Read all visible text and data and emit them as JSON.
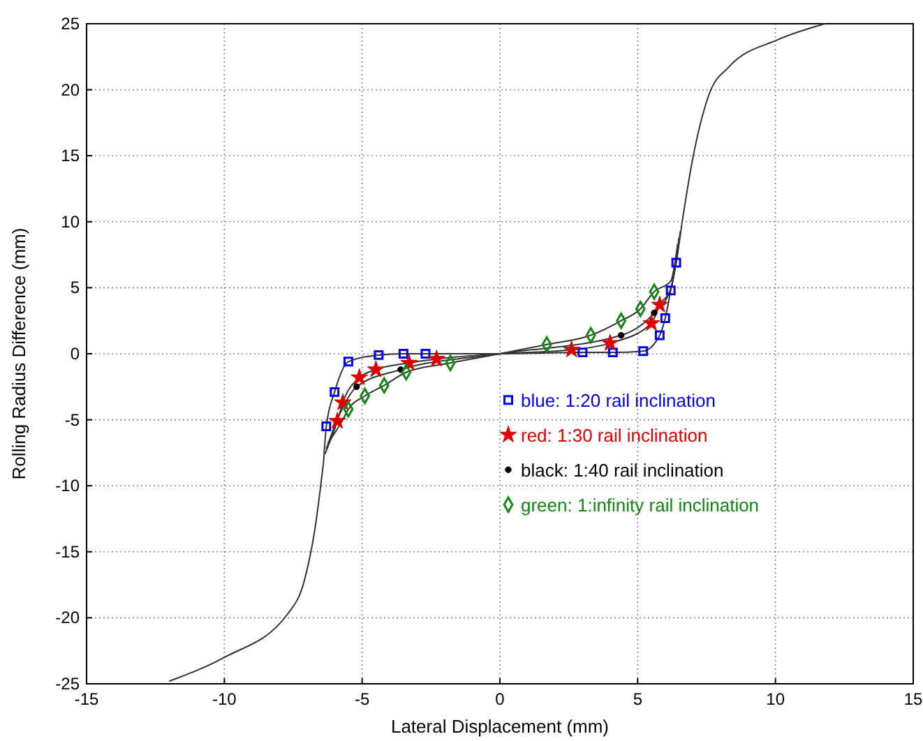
{
  "chart_data": {
    "type": "line",
    "xlabel": "Lateral Displacement (mm)",
    "ylabel": "Rolling Radius Difference (mm)",
    "xlim": [
      -15,
      15
    ],
    "ylim": [
      -25,
      25
    ],
    "xticks": [
      -15,
      -10,
      -5,
      0,
      5,
      10,
      15
    ],
    "yticks": [
      -25,
      -20,
      -15,
      -10,
      -5,
      0,
      5,
      10,
      15,
      20,
      25
    ],
    "grid": true,
    "legend": "center",
    "line_style": "solid",
    "marker": "none",
    "series": [
      {
        "color": "#333333",
        "x": [
          -12,
          -10,
          -7.7,
          -7.1,
          -6.7,
          -6.4
        ],
        "values": [
          -24.8,
          -23,
          -19.7,
          -17.2,
          -13.1,
          -8.2
        ]
      },
      {
        "color": "#333333",
        "x": [
          6.6,
          7,
          7.6,
          8.3,
          10.1,
          11.8
        ],
        "values": [
          9.8,
          14.8,
          19.7,
          21.7,
          23.8,
          25
        ]
      },
      {
        "color": "#333333",
        "x": [
          -6.4,
          -6.3,
          -6,
          -5.5,
          -4.4,
          -3.5,
          -2.7,
          0,
          3,
          4.1,
          5.2,
          5.8,
          6,
          6.2,
          6.4,
          6.6
        ],
        "values": [
          -8.2,
          -5.5,
          -2.9,
          -0.6,
          -0.1,
          0,
          0,
          0,
          0.1,
          0.1,
          0.2,
          1.4,
          2.7,
          4.8,
          6.9,
          9.8
        ]
      },
      {
        "color": "#333333",
        "x": [
          -6.35,
          -5.9,
          -5.7,
          -5.1,
          -4.5,
          -3.3,
          -2.3,
          0,
          2.6,
          4,
          5.5,
          5.8,
          6.2,
          6.55
        ],
        "values": [
          -7.6,
          -5.1,
          -3.7,
          -1.8,
          -1.2,
          -0.7,
          -0.4,
          0,
          0.3,
          0.8,
          2.3,
          3.7,
          4.9,
          9.3
        ]
      },
      {
        "color": "#333333",
        "x": [
          -6.3,
          -5.8,
          -5.2,
          -3.6,
          0,
          4.4,
          5.6,
          6.2,
          6.5
        ],
        "values": [
          -7.2,
          -4.5,
          -2.5,
          -1.2,
          0,
          1.4,
          3.1,
          4.9,
          8.8
        ]
      },
      {
        "color": "#333333",
        "x": [
          -6.25,
          -5.7,
          -5.5,
          -4.9,
          -4.2,
          -3.4,
          -1.8,
          0,
          1.7,
          3.3,
          4.4,
          5.1,
          5.6,
          6.2,
          6.45
        ],
        "values": [
          -6.8,
          -5,
          -4.2,
          -3.2,
          -2.4,
          -1.4,
          -0.7,
          0,
          0.7,
          1.4,
          2.5,
          3.4,
          4.7,
          5.5,
          8.3
        ]
      },
      {
        "type": "scatter",
        "name": "blue: 1:20 rail inclination",
        "color": "#0000ee",
        "marker": "square",
        "x": [
          -6.3,
          -6,
          -5.5,
          -4.4,
          -3.5,
          -2.7,
          3,
          4.1,
          5.2,
          5.8,
          6,
          6.2,
          6.4
        ],
        "values": [
          -5.5,
          -2.9,
          -0.6,
          -0.1,
          0,
          0,
          0.1,
          0.1,
          0.2,
          1.4,
          2.7,
          4.8,
          6.9
        ]
      },
      {
        "type": "scatter",
        "name": "red: 1:30 rail inclination",
        "color": "#dd0000",
        "marker": "star",
        "x": [
          -5.9,
          -5.7,
          -5.1,
          -4.5,
          -3.3,
          -2.3,
          2.6,
          4,
          5.5,
          5.8
        ],
        "values": [
          -5.1,
          -3.7,
          -1.8,
          -1.2,
          -0.7,
          -0.4,
          0.3,
          0.8,
          2.3,
          3.7
        ]
      },
      {
        "type": "scatter",
        "name": "black: 1:40 rail inclination",
        "color": "#000000",
        "marker": "circle",
        "x": [
          -5.2,
          -3.6,
          4.4,
          5.6
        ],
        "values": [
          -2.5,
          -1.2,
          1.4,
          3.1
        ]
      },
      {
        "type": "scatter",
        "name": "green: 1:infinity rail inclination",
        "color": "#118811",
        "marker": "diamond",
        "x": [
          -5.5,
          -4.9,
          -4.2,
          -3.4,
          -1.8,
          1.7,
          3.3,
          4.4,
          5.1,
          5.6
        ],
        "values": [
          -4.2,
          -3.2,
          -2.4,
          -1.4,
          -0.7,
          0.7,
          1.4,
          2.5,
          3.4,
          4.7
        ]
      }
    ]
  }
}
